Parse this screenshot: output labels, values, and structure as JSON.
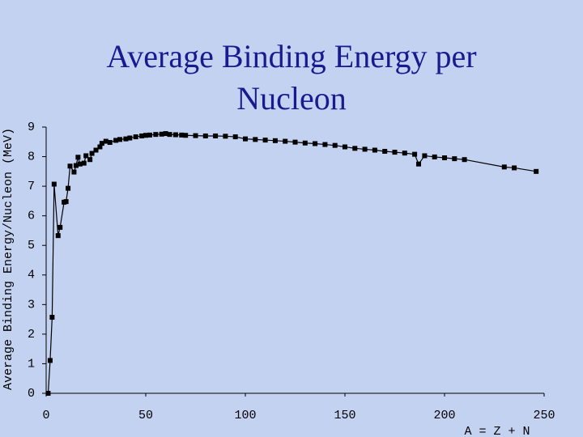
{
  "chart_data": {
    "type": "line",
    "title": "Average Binding Energy per Nucleon",
    "ylabel": "Average Binding Energy/Nucleon (MeV)",
    "xlabel": "A = Z + N",
    "x": [
      1,
      2,
      3,
      4,
      6,
      7,
      9,
      10,
      11,
      12,
      14,
      15,
      16,
      17,
      19,
      20,
      22,
      23,
      25,
      27,
      28,
      30,
      32,
      35,
      37,
      40,
      42,
      45,
      48,
      50,
      52,
      55,
      58,
      60,
      62,
      65,
      68,
      70,
      75,
      80,
      85,
      90,
      95,
      100,
      105,
      110,
      115,
      120,
      125,
      130,
      135,
      140,
      145,
      150,
      155,
      160,
      165,
      170,
      175,
      180,
      185,
      187,
      190,
      195,
      200,
      205,
      210,
      230,
      235,
      246
    ],
    "values": [
      0,
      1.11,
      2.57,
      7.07,
      5.33,
      5.61,
      6.46,
      6.48,
      6.93,
      7.68,
      7.48,
      7.7,
      7.98,
      7.75,
      7.78,
      8.03,
      7.9,
      8.11,
      8.22,
      8.33,
      8.45,
      8.52,
      8.48,
      8.55,
      8.58,
      8.6,
      8.63,
      8.67,
      8.7,
      8.72,
      8.73,
      8.75,
      8.76,
      8.78,
      8.75,
      8.74,
      8.73,
      8.72,
      8.71,
      8.7,
      8.7,
      8.69,
      8.67,
      8.6,
      8.58,
      8.56,
      8.54,
      8.52,
      8.49,
      8.46,
      8.44,
      8.41,
      8.38,
      8.33,
      8.28,
      8.25,
      8.22,
      8.18,
      8.15,
      8.12,
      8.08,
      7.75,
      8.03,
      7.99,
      7.96,
      7.93,
      7.9,
      7.65,
      7.62,
      7.5
    ],
    "color": "#000000",
    "xlim": [
      0,
      250
    ],
    "xticks": [
      0,
      50,
      100,
      150,
      200,
      250
    ],
    "ylim": [
      0,
      9
    ],
    "yticks": [
      0,
      1,
      2,
      3,
      4,
      5,
      6,
      7,
      8,
      9
    ],
    "markers": true
  }
}
